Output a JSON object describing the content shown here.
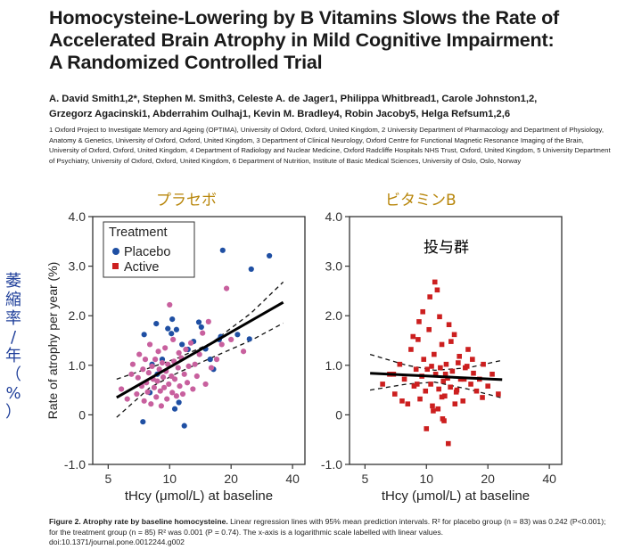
{
  "title_lines": [
    "Homocysteine-Lowering by B Vitamins Slows the Rate of",
    "Accelerated Brain Atrophy in Mild Cognitive Impairment:",
    "A Randomized Controlled Trial"
  ],
  "authors_lines": [
    "A. David Smith1,2*, Stephen M. Smith3, Celeste A. de Jager1, Philippa Whitbread1, Carole Johnston1,2,",
    "Grzegorz Agacinski1, Abderrahim Oulhaj1, Kevin M. Bradley4, Robin Jacoby5, Helga Refsum1,2,6"
  ],
  "affiliations": "1 Oxford Project to Investigate Memory and Ageing (OPTIMA), University of Oxford, Oxford, United Kingdom, 2 University Department of Pharmacology and Department of Physiology, Anatomy & Genetics, University of Oxford, Oxford, United Kingdom, 3 Department of Clinical Neurology, Oxford Centre for Functional Magnetic Resonance Imaging of the Brain, University of Oxford, Oxford, United Kingdom, 4 Department of Radiology and Nuclear Medicine, Oxford Radcliffe Hospitals NHS Trust, Oxford, United Kingdom, 5 University Department of Psychiatry, University of Oxford, Oxford, United Kingdom, 6 Department of Nutrition, Institute of Basic Medical Sciences, University of Oslo, Oslo, Norway",
  "annotations": {
    "placebo_jp": "プラセボ",
    "vitamin_jp": "ビタミンB",
    "treated_jp": "投与群",
    "yaxis_jp_chars": [
      "萎",
      "縮",
      "率",
      "/",
      "年",
      "（",
      "%",
      "）"
    ]
  },
  "caption": {
    "label": "Figure 2. Atrophy rate by baseline homocysteine.",
    "text": " Linear regression lines with 95% mean prediction intervals. R² for placebo group (n = 83) was 0.242 (P<0.001); for the treatment group (n = 85) R² was 0.001 (P = 0.74). The x-axis is a logarithmic scale labelled with linear values.",
    "doi": "doi:10.1371/journal.pone.0012244.g002"
  },
  "colors": {
    "placebo": "#1f4fa3",
    "active": "#cc1f1f",
    "placebo_pink": "#c8609e",
    "jp_label": "#b8860b",
    "jp_axis": "#1f3f9a"
  },
  "chart_data": [
    {
      "type": "scatter",
      "xlabel": "tHcy (μmol/L) at baseline",
      "ylabel": "Rate of atrophy per year (%)",
      "xscale": "log",
      "xticks": [
        5,
        10,
        20,
        40
      ],
      "yticks": [
        -1.0,
        0,
        1.0,
        2.0,
        3.0,
        4.0
      ],
      "ytick_labels": [
        "-1.0",
        "0",
        "1.0",
        "2.0",
        "3.0",
        "4.0"
      ],
      "xlim": [
        4.2,
        46
      ],
      "ylim": [
        -1.0,
        4.0
      ],
      "legend": {
        "title": "Treatment",
        "position": "top-left",
        "entries": [
          "Placebo",
          "Active"
        ]
      },
      "regression": {
        "x": [
          5.5,
          36
        ],
        "y": [
          0.35,
          2.27
        ]
      },
      "ci_upper": {
        "x": [
          5.5,
          8,
          11,
          16,
          25,
          36
        ],
        "y": [
          0.72,
          0.95,
          1.15,
          1.45,
          2.05,
          2.68
        ]
      },
      "ci_lower": {
        "x": [
          5.5,
          8,
          11,
          16,
          25,
          36
        ],
        "y": [
          -0.05,
          0.55,
          0.85,
          1.15,
          1.5,
          1.85
        ]
      },
      "series": [
        {
          "name": "Placebo",
          "x": [
            7.5,
            8.2,
            8.6,
            9.2,
            9.8,
            10.2,
            10.8,
            11.5,
            12.3,
            13.1,
            13.9,
            14.3,
            15.0,
            15.8,
            16.4,
            17.5,
            17.8,
            18.2,
            21.5,
            24.6,
            25.1,
            30.8,
            8.0,
            10.6,
            7.4,
            10.3,
            11.1,
            11.8,
            8.7
          ],
          "y": [
            1.62,
            1.02,
            1.84,
            1.12,
            1.74,
            1.64,
            1.72,
            1.42,
            1.32,
            1.48,
            1.87,
            1.77,
            1.33,
            1.12,
            0.92,
            1.52,
            1.58,
            3.32,
            1.62,
            1.53,
            2.94,
            3.21,
            0.45,
            0.12,
            -0.14,
            1.93,
            0.25,
            -0.22,
            0.82
          ]
        },
        {
          "name": "Placebo (pink markers)",
          "x": [
            5.8,
            6.2,
            6.5,
            6.6,
            6.9,
            7.0,
            7.1,
            7.3,
            7.4,
            7.5,
            7.6,
            7.7,
            7.8,
            7.9,
            8.0,
            8.1,
            8.2,
            8.3,
            8.4,
            8.5,
            8.6,
            8.7,
            8.8,
            8.9,
            9.0,
            9.1,
            9.2,
            9.3,
            9.4,
            9.5,
            9.6,
            9.7,
            9.8,
            9.9,
            10.0,
            10.2,
            10.3,
            10.4,
            10.5,
            10.6,
            10.8,
            11.0,
            11.1,
            11.2,
            11.4,
            11.6,
            11.8,
            12.0,
            12.2,
            12.4,
            12.7,
            13.0,
            13.3,
            13.6,
            14.0,
            14.5,
            15.0,
            15.5,
            16.0,
            17.0,
            18.0,
            19.0,
            20.0,
            23.0
          ],
          "y": [
            0.52,
            0.32,
            0.82,
            1.02,
            0.42,
            0.75,
            1.22,
            0.58,
            0.92,
            0.28,
            1.12,
            0.65,
            0.46,
            0.85,
            1.42,
            0.22,
            0.98,
            0.72,
            0.55,
            1.12,
            0.36,
            0.68,
            1.28,
            0.92,
            0.48,
            0.18,
            1.05,
            0.76,
            0.55,
            1.35,
            0.88,
            0.32,
            1.02,
            0.62,
            2.22,
            0.78,
            0.45,
            1.52,
            1.08,
            0.72,
            0.38,
            0.95,
            1.25,
            0.58,
            1.15,
            0.42,
            0.82,
            1.32,
            0.65,
            0.98,
            1.45,
            0.52,
            1.02,
            0.78,
            1.22,
            1.65,
            0.62,
            1.88,
            0.95,
            1.12,
            1.42,
            2.55,
            1.52,
            1.28
          ]
        },
        {
          "name": "Active (legend entry)",
          "x": [],
          "y": []
        }
      ]
    },
    {
      "type": "scatter",
      "xlabel": "tHcy (μmol/L) at baseline",
      "ylabel": "",
      "xscale": "log",
      "xticks": [
        5,
        10,
        20,
        40
      ],
      "yticks": [
        -1.0,
        0,
        1.0,
        2.0,
        3.0,
        4.0
      ],
      "ytick_labels": [
        "-1.0",
        "0",
        "1.0",
        "2.0",
        "3.0",
        "4.0"
      ],
      "xlim": [
        4.2,
        46
      ],
      "ylim": [
        -1.0,
        4.0
      ],
      "regression": {
        "x": [
          5.3,
          23.5
        ],
        "y": [
          0.84,
          0.71
        ]
      },
      "ci_upper": {
        "x": [
          5.3,
          8,
          11,
          16,
          23.5
        ],
        "y": [
          1.22,
          1.0,
          0.9,
          0.95,
          1.1
        ]
      },
      "ci_lower": {
        "x": [
          5.3,
          8,
          11,
          16,
          23.5
        ],
        "y": [
          0.5,
          0.62,
          0.66,
          0.52,
          0.34
        ]
      },
      "series": [
        {
          "name": "Active",
          "x": [
            6.1,
            6.6,
            7.0,
            7.4,
            7.8,
            8.1,
            8.4,
            8.7,
            8.9,
            9.1,
            9.3,
            9.5,
            9.7,
            9.9,
            10.1,
            10.3,
            10.5,
            10.7,
            10.9,
            11.1,
            11.3,
            11.5,
            11.7,
            11.9,
            12.1,
            12.3,
            12.5,
            12.7,
            12.9,
            13.1,
            13.4,
            13.7,
            14.0,
            14.3,
            14.7,
            15.1,
            15.5,
            16.0,
            16.5,
            17.0,
            17.6,
            18.2,
            19.0,
            20.0,
            21.0,
            22.5,
            9.6,
            10.4,
            11.0,
            11.6,
            12.2,
            12.8,
            10.0,
            10.8,
            11.4,
            12.0,
            9.2,
            8.6,
            13.2,
            14.5,
            15.8,
            7.6,
            6.9,
            18.8,
            16.8,
            13.8,
            11.9,
            10.6,
            9.0,
            12.4,
            14.1,
            15.3
          ],
          "y": [
            0.62,
            0.82,
            0.42,
            1.02,
            0.72,
            0.22,
            1.32,
            0.58,
            0.92,
            1.52,
            0.32,
            0.78,
            1.12,
            0.48,
            0.92,
            1.72,
            0.62,
            0.18,
            1.22,
            0.82,
            2.52,
            0.52,
            0.95,
            1.42,
            0.68,
            0.38,
            1.02,
            0.74,
            1.82,
            0.56,
            0.88,
            1.62,
            0.46,
            1.05,
            0.72,
            0.28,
            0.95,
            1.32,
            0.62,
            0.84,
            0.48,
            0.72,
            1.02,
            0.58,
            0.82,
            0.42,
            2.08,
            2.38,
            2.68,
            1.98,
            -0.12,
            -0.58,
            -0.28,
            0.08,
            0.12,
            -0.08,
            1.88,
            1.58,
            1.48,
            1.18,
            0.98,
            0.28,
            0.82,
            0.35,
            1.12,
            0.22,
            0.36,
            0.98,
            0.62,
            0.82,
            0.5,
            0.72
          ]
        }
      ]
    }
  ]
}
